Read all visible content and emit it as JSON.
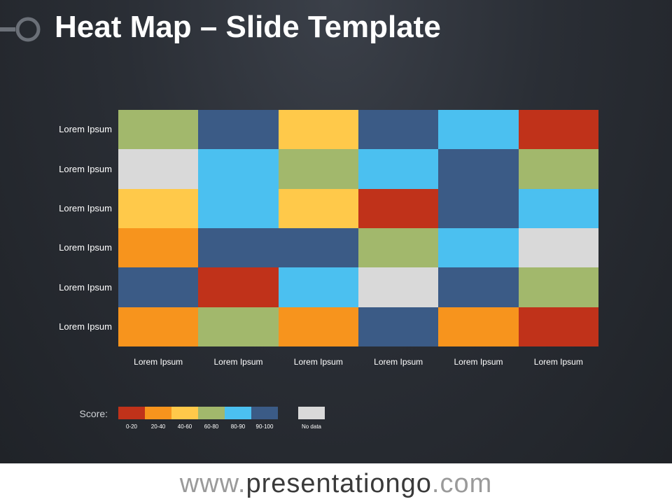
{
  "title": "Heat Map – Slide Template",
  "heatmap": {
    "row_labels": [
      "Lorem Ipsum",
      "Lorem Ipsum",
      "Lorem Ipsum",
      "Lorem Ipsum",
      "Lorem Ipsum",
      "Lorem Ipsum"
    ],
    "column_labels": [
      "Lorem Ipsum",
      "Lorem Ipsum",
      "Lorem Ipsum",
      "Lorem Ipsum",
      "Lorem Ipsum",
      "Lorem Ipsum"
    ],
    "cells": [
      [
        "60-80",
        "90-100",
        "40-60",
        "90-100",
        "80-90",
        "0-20"
      ],
      [
        "No data",
        "80-90",
        "60-80",
        "80-90",
        "90-100",
        "60-80"
      ],
      [
        "40-60",
        "80-90",
        "40-60",
        "0-20",
        "90-100",
        "80-90"
      ],
      [
        "20-40",
        "90-100",
        "90-100",
        "60-80",
        "80-90",
        "No data"
      ],
      [
        "90-100",
        "0-20",
        "80-90",
        "No data",
        "90-100",
        "60-80"
      ],
      [
        "20-40",
        "60-80",
        "20-40",
        "90-100",
        "20-40",
        "0-20"
      ]
    ]
  },
  "legend": {
    "label": "Score:",
    "items": [
      {
        "label": "0-20",
        "color": "#c0321a"
      },
      {
        "label": "20-40",
        "color": "#f7941d"
      },
      {
        "label": "40-60",
        "color": "#ffc94a"
      },
      {
        "label": "60-80",
        "color": "#a2b86c"
      },
      {
        "label": "80-90",
        "color": "#4bc0f0"
      },
      {
        "label": "90-100",
        "color": "#3b5b86"
      },
      {
        "label": "No data",
        "color": "#d9d9d9"
      }
    ]
  },
  "footer": {
    "prefix": "www.",
    "brand": "presentationgo",
    "suffix": ".com"
  }
}
